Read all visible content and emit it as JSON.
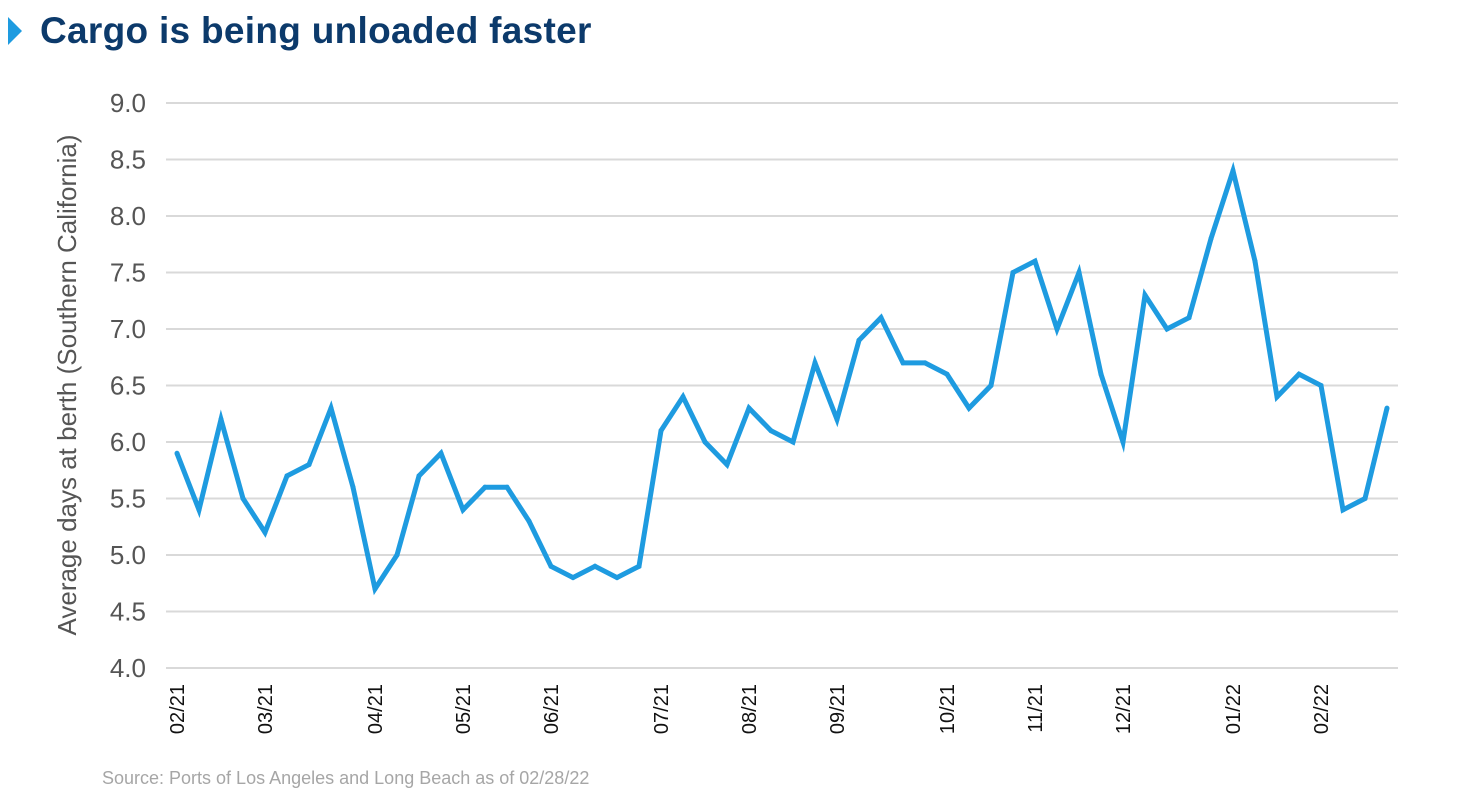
{
  "title": "Cargo is being unloaded faster",
  "source": "Source: Ports of Los Angeles and Long Beach as of 02/28/22",
  "colors": {
    "line": "#1e9be0",
    "title": "#0c3a6b",
    "grid": "#d9d9d9"
  },
  "chart_data": {
    "type": "line",
    "ylabel": "Average days at berth (Southern California)",
    "xlabel": "",
    "ylim": [
      4.0,
      9.0
    ],
    "yticks": [
      "4.0",
      "4.5",
      "5.0",
      "5.5",
      "6.0",
      "6.5",
      "7.0",
      "7.5",
      "8.0",
      "8.5",
      "9.0"
    ],
    "xticks": [
      {
        "label": "02/21",
        "week": 0
      },
      {
        "label": "03/21",
        "week": 4
      },
      {
        "label": "04/21",
        "week": 9
      },
      {
        "label": "05/21",
        "week": 13
      },
      {
        "label": "06/21",
        "week": 17
      },
      {
        "label": "07/21",
        "week": 22
      },
      {
        "label": "08/21",
        "week": 26
      },
      {
        "label": "09/21",
        "week": 30
      },
      {
        "label": "10/21",
        "week": 35
      },
      {
        "label": "11/21",
        "week": 39
      },
      {
        "label": "12/21",
        "week": 43
      },
      {
        "label": "01/22",
        "week": 48
      },
      {
        "label": "02/22",
        "week": 52
      }
    ],
    "grid": true,
    "legend": "none",
    "series": [
      {
        "values": [
          5.9,
          5.4,
          6.2,
          5.5,
          5.2,
          5.7,
          5.8,
          6.3,
          5.6,
          4.7,
          5.0,
          5.7,
          5.9,
          5.4,
          5.6,
          5.6,
          5.3,
          4.9,
          4.8,
          4.9,
          4.8,
          4.9,
          6.1,
          6.4,
          6.0,
          5.8,
          6.3,
          6.1,
          6.0,
          6.7,
          6.2,
          6.9,
          7.1,
          6.7,
          6.7,
          6.6,
          6.3,
          6.5,
          7.5,
          7.6,
          7.0,
          7.5,
          6.6,
          6.0,
          7.3,
          7.0,
          7.1,
          7.8,
          8.4,
          7.6,
          6.4,
          6.6,
          6.5,
          5.4,
          5.5,
          6.3
        ]
      }
    ]
  }
}
